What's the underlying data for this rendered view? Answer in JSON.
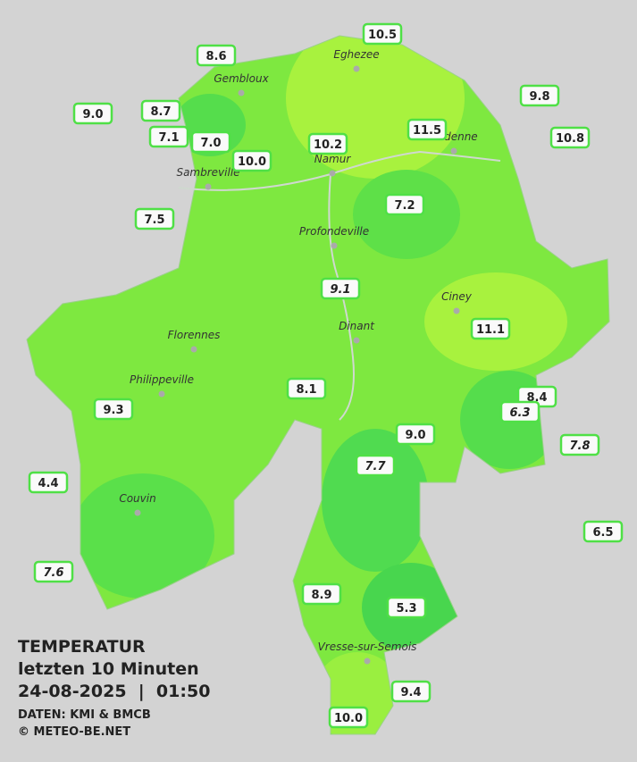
{
  "title": {
    "line1": "TEMPERATUR",
    "line2": "letzten 10 Minuten",
    "line3": "24-08-2025  |  01:50",
    "source": "DATEN: KMI & BMCB",
    "copyright": "© METEO-BE.NET"
  },
  "cities": [
    "Eghezee",
    "Gembloux",
    "Andenne",
    "Namur",
    "Sambreville",
    "Profondeville",
    "Ciney",
    "Dinant",
    "Florennes",
    "Philippeville",
    "Couvin",
    "Vresse-sur-Semois"
  ],
  "stations": [
    "10.5",
    "8.6",
    "9.8",
    "9.0",
    "8.7",
    "11.5",
    "10.8",
    "7.1",
    "7.0",
    "10.2",
    "10.0",
    "7.2",
    "7.5",
    "9.1",
    "11.1",
    "8.1",
    "8.4",
    "6.3",
    "9.3",
    "9.0",
    "7.8",
    "7.7",
    "4.4",
    "6.5",
    "7.6",
    "8.9",
    "5.3",
    "9.4",
    "10.0"
  ]
}
